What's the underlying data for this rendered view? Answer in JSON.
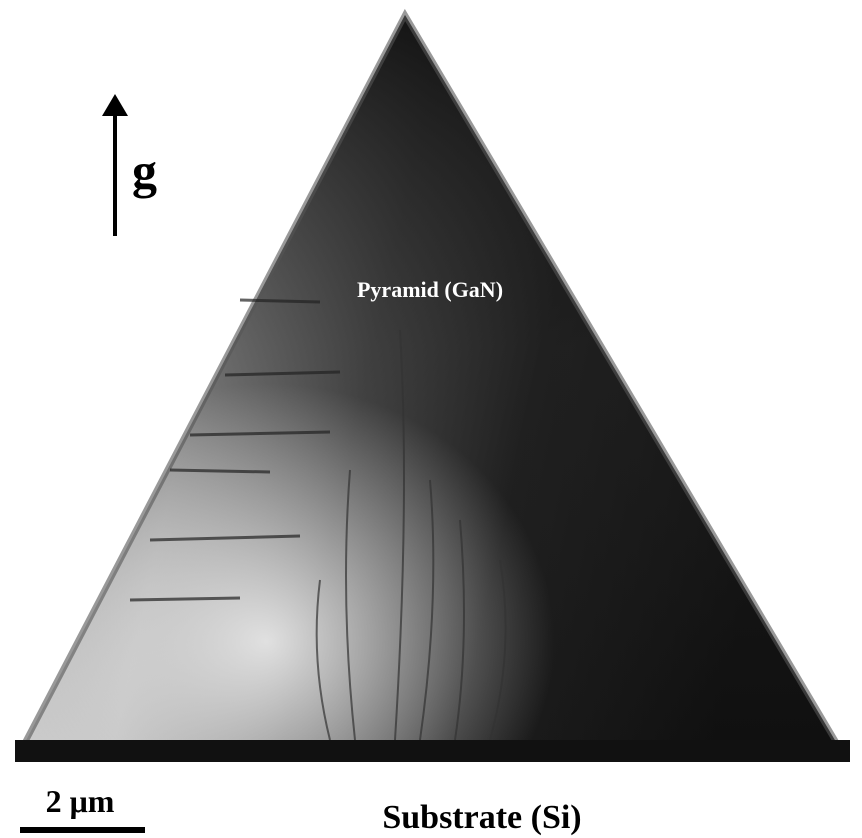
{
  "image": {
    "arrow_label": "g",
    "pyramid_label": "Pyramid (GaN)",
    "scale_label": "2 μm",
    "substrate_label": "Substrate (Si)"
  }
}
